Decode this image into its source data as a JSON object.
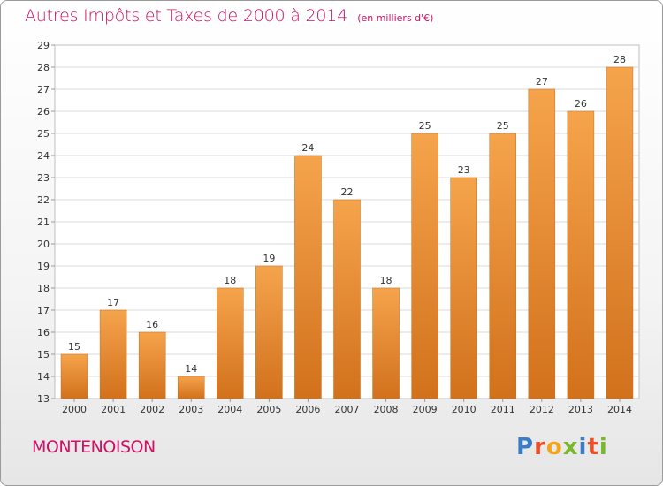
{
  "header": {
    "title": "Autres Impôts et Taxes de 2000 à 2014",
    "unit_note": "(en milliers d'€)"
  },
  "footer": {
    "commune": "MONTENOISON",
    "logo_letters": [
      "P",
      "r",
      "o",
      "x",
      "i",
      "t",
      "i"
    ]
  },
  "colors": {
    "accent": "#cc1166",
    "bar_top": "#f5a44c",
    "bar_bottom": "#d2711c"
  },
  "chart_data": {
    "type": "bar",
    "title": "Autres Impôts et Taxes de 2000 à 2014",
    "categories": [
      "2000",
      "2001",
      "2002",
      "2003",
      "2004",
      "2005",
      "2006",
      "2007",
      "2008",
      "2009",
      "2010",
      "2011",
      "2012",
      "2013",
      "2014"
    ],
    "values": [
      15,
      17,
      16,
      14,
      18,
      19,
      24,
      22,
      18,
      25,
      23,
      25,
      27,
      26,
      28
    ],
    "ylim": [
      13,
      29
    ],
    "yticks": [
      13,
      14,
      15,
      16,
      17,
      18,
      19,
      20,
      21,
      22,
      23,
      24,
      25,
      26,
      27,
      28,
      29
    ],
    "grid": true,
    "data_labels": true
  }
}
